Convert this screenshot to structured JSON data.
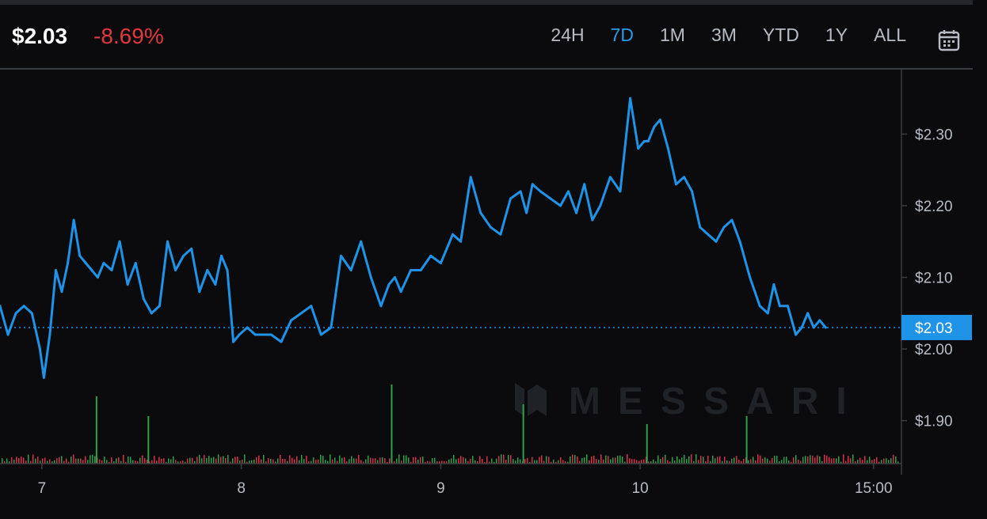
{
  "header": {
    "price": "$2.03",
    "change": "-8.69%",
    "ranges": [
      "24H",
      "7D",
      "1M",
      "3M",
      "YTD",
      "1Y",
      "ALL"
    ],
    "active_range": "7D"
  },
  "watermark": "MESSARI",
  "colors": {
    "line": "#1f93e8",
    "negative": "#e0393e",
    "volume_up": "#2fa04c",
    "volume_down": "#d9314a",
    "background": "#0b0b0d"
  },
  "chart_data": {
    "type": "line",
    "ylim": [
      1.84,
      2.39
    ],
    "yticks": [
      1.9,
      2.0,
      2.1,
      2.2,
      2.3
    ],
    "ytick_labels": [
      "$1.90",
      "$2.00",
      "$2.10",
      "$2.20",
      "$2.30"
    ],
    "xlim": [
      6.79,
      11.31
    ],
    "xticks": [
      7,
      8,
      9,
      10,
      11.17
    ],
    "xtick_labels": [
      "7",
      "8",
      "9",
      "10",
      "15:00"
    ],
    "current_price": 2.03,
    "current_price_label": "$2.03",
    "x": [
      6.79,
      6.83,
      6.87,
      6.91,
      6.95,
      6.99,
      7.01,
      7.04,
      7.07,
      7.1,
      7.13,
      7.16,
      7.19,
      7.22,
      7.25,
      7.28,
      7.31,
      7.35,
      7.39,
      7.43,
      7.47,
      7.51,
      7.55,
      7.59,
      7.63,
      7.67,
      7.71,
      7.75,
      7.79,
      7.83,
      7.87,
      7.9,
      7.93,
      7.96,
      7.99,
      8.03,
      8.07,
      8.11,
      8.15,
      8.2,
      8.25,
      8.3,
      8.35,
      8.4,
      8.45,
      8.5,
      8.55,
      8.6,
      8.65,
      8.7,
      8.74,
      8.77,
      8.8,
      8.85,
      8.9,
      8.95,
      9.0,
      9.03,
      9.06,
      9.1,
      9.15,
      9.2,
      9.25,
      9.3,
      9.35,
      9.4,
      9.43,
      9.46,
      9.5,
      9.55,
      9.6,
      9.64,
      9.68,
      9.72,
      9.76,
      9.8,
      9.85,
      9.9,
      9.95,
      9.99,
      10.02,
      10.04,
      10.07,
      10.1,
      10.14,
      10.18,
      10.22,
      10.26,
      10.3,
      10.34,
      10.38,
      10.42,
      10.46,
      10.5,
      10.55,
      10.6,
      10.64,
      10.67,
      10.7,
      10.74,
      10.78,
      10.81,
      10.84,
      10.87,
      10.9,
      10.93
    ],
    "y": [
      2.06,
      2.02,
      2.05,
      2.06,
      2.05,
      2.0,
      1.96,
      2.02,
      2.11,
      2.08,
      2.12,
      2.18,
      2.13,
      2.12,
      2.11,
      2.1,
      2.12,
      2.11,
      2.15,
      2.09,
      2.12,
      2.07,
      2.05,
      2.06,
      2.15,
      2.11,
      2.13,
      2.14,
      2.08,
      2.11,
      2.09,
      2.13,
      2.11,
      2.01,
      2.02,
      2.03,
      2.02,
      2.02,
      2.02,
      2.01,
      2.04,
      2.05,
      2.06,
      2.02,
      2.03,
      2.13,
      2.11,
      2.15,
      2.1,
      2.06,
      2.09,
      2.1,
      2.08,
      2.11,
      2.11,
      2.13,
      2.12,
      2.14,
      2.16,
      2.15,
      2.24,
      2.19,
      2.17,
      2.16,
      2.21,
      2.22,
      2.19,
      2.23,
      2.22,
      2.21,
      2.2,
      2.22,
      2.19,
      2.23,
      2.18,
      2.2,
      2.24,
      2.22,
      2.35,
      2.28,
      2.29,
      2.29,
      2.31,
      2.32,
      2.28,
      2.23,
      2.24,
      2.22,
      2.17,
      2.16,
      2.15,
      2.17,
      2.18,
      2.15,
      2.1,
      2.06,
      2.05,
      2.09,
      2.06,
      2.06,
      2.02,
      2.03,
      2.05,
      2.03,
      2.04,
      2.03
    ],
    "volume_markers": [
      {
        "x": 7.27,
        "v": 0.85
      },
      {
        "x": 7.53,
        "v": 0.6
      },
      {
        "x": 8.75,
        "v": 1.0
      },
      {
        "x": 9.41,
        "v": 0.75
      },
      {
        "x": 10.03,
        "v": 0.5
      },
      {
        "x": 10.53,
        "v": 0.6
      }
    ]
  }
}
